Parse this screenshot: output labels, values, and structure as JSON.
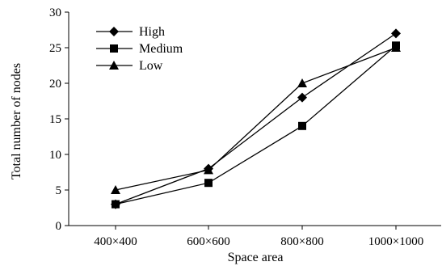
{
  "chart_data": {
    "type": "line",
    "title": "",
    "xlabel": "Space area",
    "ylabel": "Total number of nodes",
    "categories": [
      "400×400",
      "600×600",
      "800×800",
      "1000×1000"
    ],
    "ylim": [
      0,
      30
    ],
    "yticks": [
      0,
      5,
      10,
      15,
      20,
      25,
      30
    ],
    "grid": false,
    "legend_position": "top-left",
    "series": [
      {
        "name": "High",
        "marker": "diamond",
        "values": [
          3,
          8,
          18,
          27
        ]
      },
      {
        "name": "Medium",
        "marker": "square",
        "values": [
          3,
          6,
          14,
          25.3
        ]
      },
      {
        "name": "Low",
        "marker": "triangle",
        "values": [
          5,
          7.8,
          20,
          25
        ]
      }
    ],
    "line_color": "#000000"
  }
}
